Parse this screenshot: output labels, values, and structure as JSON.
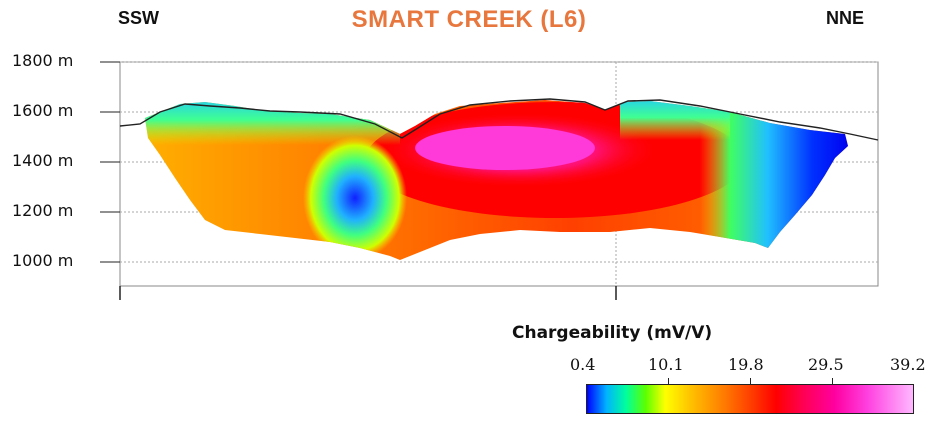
{
  "title": "SMART CREEK (L6)",
  "direction_left": "SSW",
  "direction_right": "NNE",
  "elevation_labels": [
    "1800 m",
    "1600 m",
    "1400 m",
    "1200 m",
    "1000 m"
  ],
  "legend": {
    "title": "Chargeability (mV/V)",
    "ticks": [
      "0.4",
      "10.1",
      "19.8",
      "29.5",
      "39.2"
    ]
  },
  "colors": {
    "title": "#e8773e",
    "low": "#0000ff",
    "high": "#ffb8ff"
  }
}
